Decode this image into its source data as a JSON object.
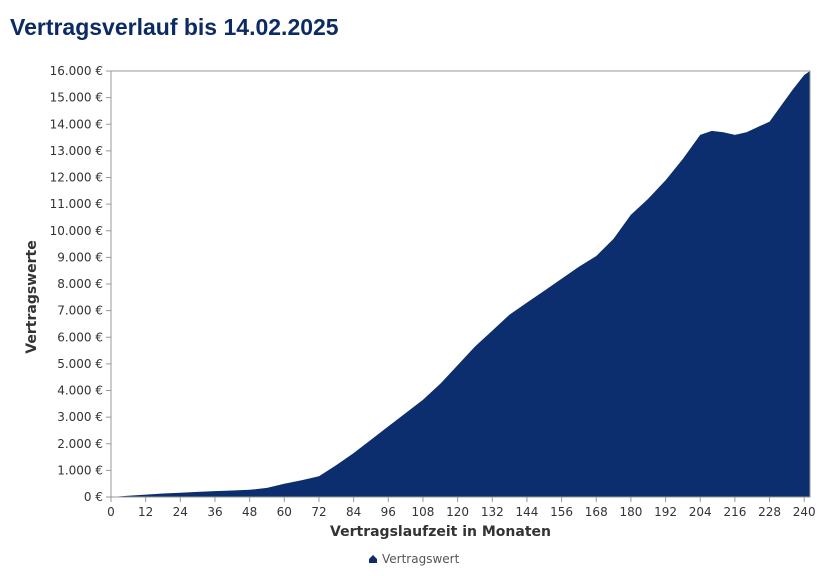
{
  "page": {
    "title": "Vertragsverlauf bis 14.02.2025"
  },
  "chart_data": {
    "type": "area",
    "xlabel": "Vertragslaufzeit in Monaten",
    "ylabel": "Vertragswerte",
    "xlim": [
      0,
      242
    ],
    "ylim": [
      0,
      16000
    ],
    "x_ticks": [
      0,
      12,
      24,
      36,
      48,
      60,
      72,
      84,
      96,
      108,
      120,
      132,
      144,
      156,
      168,
      180,
      192,
      204,
      216,
      228,
      240
    ],
    "y_ticks": [
      0,
      1000,
      2000,
      3000,
      4000,
      5000,
      6000,
      7000,
      8000,
      9000,
      10000,
      11000,
      12000,
      13000,
      14000,
      15000,
      16000
    ],
    "y_tick_labels": [
      "0 €",
      "1.000 €",
      "2.000 €",
      "3.000 €",
      "4.000 €",
      "5.000 €",
      "6.000 €",
      "7.000 €",
      "8.000 €",
      "9.000 €",
      "10.000 €",
      "11.000 €",
      "12.000 €",
      "13.000 €",
      "14.000 €",
      "15.000 €",
      "16.000 €"
    ],
    "grid": false,
    "legend": "bottom-center",
    "series": [
      {
        "name": "Vertragswert",
        "color": "#0c2d6e",
        "x": [
          0,
          6,
          12,
          18,
          24,
          30,
          36,
          42,
          48,
          54,
          60,
          66,
          72,
          78,
          84,
          90,
          96,
          102,
          108,
          114,
          120,
          126,
          132,
          138,
          144,
          150,
          156,
          162,
          168,
          174,
          180,
          186,
          192,
          198,
          204,
          208,
          212,
          216,
          220,
          224,
          228,
          232,
          236,
          240,
          242
        ],
        "values": [
          0,
          50,
          90,
          130,
          160,
          190,
          220,
          245,
          270,
          340,
          500,
          630,
          780,
          1200,
          1650,
          2150,
          2650,
          3150,
          3650,
          4250,
          4950,
          5650,
          6250,
          6850,
          7300,
          7750,
          8200,
          8650,
          9050,
          9700,
          10600,
          11200,
          11900,
          12700,
          13600,
          13750,
          13700,
          13600,
          13700,
          13900,
          14100,
          14700,
          15300,
          15850,
          16000
        ]
      }
    ]
  }
}
